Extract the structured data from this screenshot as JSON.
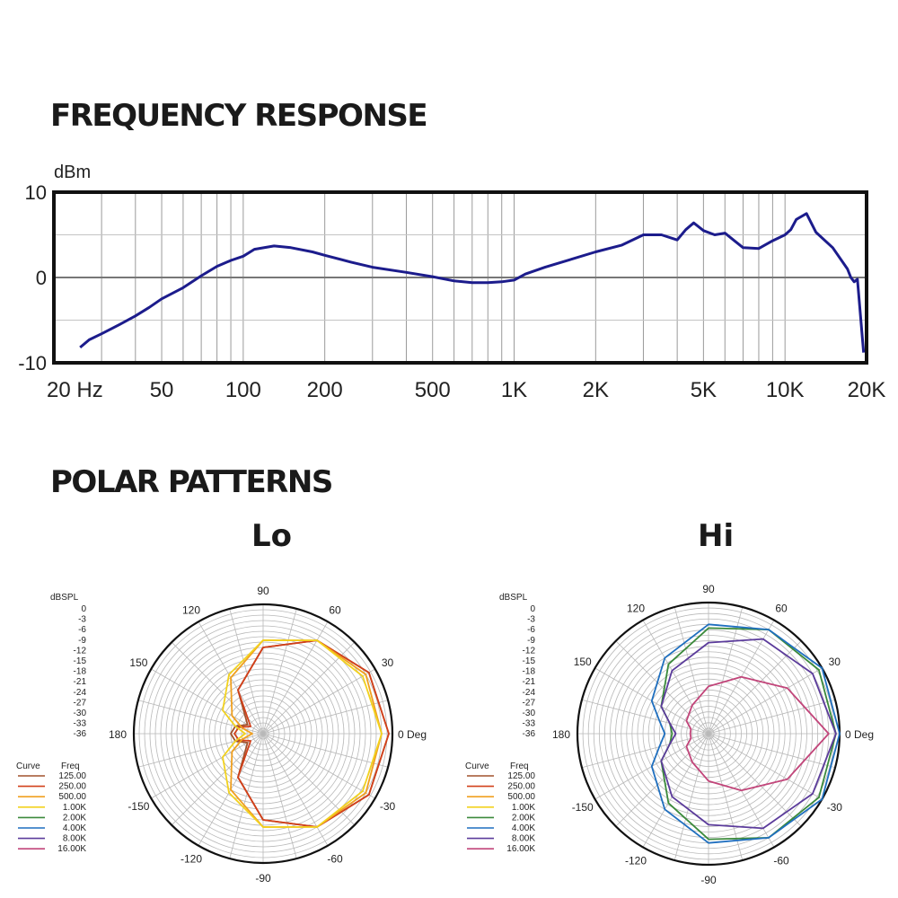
{
  "headings": {
    "frequency_response": "FREQUENCY RESPONSE",
    "polar_patterns": "POLAR PATTERNS",
    "lo": "Lo",
    "hi": "Hi"
  },
  "colors": {
    "response_line": "#1c1c8c",
    "frame": "#111111",
    "grid": "#9a9a9a"
  },
  "chart_data": [
    {
      "type": "line",
      "title": "FREQUENCY RESPONSE",
      "ylabel": "dBm",
      "xscale": "log",
      "xlim": [
        20,
        20000
      ],
      "ylim": [
        -10,
        10
      ],
      "xticks": [
        20,
        50,
        100,
        200,
        500,
        1000,
        2000,
        5000,
        10000,
        20000
      ],
      "xtick_labels": [
        "20 Hz",
        "50",
        "100",
        "200",
        "500",
        "1K",
        "2K",
        "5K",
        "10K",
        "20K"
      ],
      "yticks": [
        10,
        0,
        -10
      ],
      "ytick_labels": [
        "10",
        "0",
        "-10"
      ],
      "grid": true,
      "series": [
        {
          "x": [
            25,
            27,
            30,
            35,
            40,
            45,
            50,
            60,
            70,
            80,
            90,
            100,
            110,
            130,
            150,
            180,
            200,
            250,
            300,
            400,
            500,
            600,
            700,
            800,
            900,
            1000,
            1100,
            1300,
            1500,
            2000,
            2500,
            3000,
            3500,
            4000,
            4300,
            4600,
            5000,
            5500,
            6000,
            6500,
            7000,
            8000,
            9000,
            10000,
            10500,
            11000,
            12000,
            13000,
            15000,
            17000,
            17500,
            18000,
            18500,
            19500
          ],
          "y": [
            -8.2,
            -7.3,
            -6.6,
            -5.5,
            -4.5,
            -3.5,
            -2.5,
            -1.2,
            0.2,
            1.3,
            2.0,
            2.5,
            3.3,
            3.7,
            3.5,
            3.0,
            2.6,
            1.8,
            1.2,
            0.6,
            0.1,
            -0.4,
            -0.6,
            -0.6,
            -0.5,
            -0.3,
            0.4,
            1.2,
            1.8,
            3.0,
            3.8,
            5.0,
            5.0,
            4.4,
            5.6,
            6.4,
            5.5,
            5.0,
            5.2,
            4.3,
            3.5,
            3.4,
            4.3,
            5.0,
            5.6,
            6.8,
            7.5,
            5.3,
            3.5,
            1.0,
            0.0,
            -0.5,
            -0.2,
            -8.8
          ]
        }
      ]
    },
    {
      "type": "polar",
      "title": "Lo",
      "radial_label": "dBSPL",
      "radial_ticks": [
        "0",
        "-3",
        "-6",
        "-9",
        "-12",
        "-15",
        "-18",
        "-21",
        "-24",
        "-27",
        "-30",
        "-33",
        "-36"
      ],
      "angle_ticks": [
        "0 Deg",
        "30",
        "60",
        "90",
        "120",
        "150",
        "180",
        "-150",
        "-120",
        "-90",
        "-60",
        "-30"
      ],
      "legend_header": [
        "Curve",
        "Freq"
      ],
      "legend": [
        {
          "freq": "125.00",
          "color": "#a0522d"
        },
        {
          "freq": "250.00",
          "color": "#d2401a"
        },
        {
          "freq": "500.00",
          "color": "#f0a020"
        },
        {
          "freq": "1.00K",
          "color": "#f2d21e"
        },
        {
          "freq": "2.00K",
          "color": "#3b8a3b"
        },
        {
          "freq": "4.00K",
          "color": "#1f6fbf"
        },
        {
          "freq": "8.00K",
          "color": "#5b3b9b"
        },
        {
          "freq": "16.00K",
          "color": "#c2457a"
        }
      ],
      "series": [
        {
          "name": "125.00",
          "angles": [
            0,
            30,
            60,
            90,
            120,
            150,
            165,
            180
          ],
          "db": [
            -1,
            -2,
            -6,
            -12,
            -22,
            -31,
            -28,
            -27
          ]
        },
        {
          "name": "250.00",
          "angles": [
            0,
            30,
            60,
            90,
            120,
            150,
            165,
            180
          ],
          "db": [
            -1,
            -2,
            -6,
            -12,
            -22,
            -32,
            -29,
            -28
          ]
        },
        {
          "name": "500.00",
          "angles": [
            0,
            30,
            60,
            90,
            120,
            150,
            165,
            180
          ],
          "db": [
            -3,
            -3,
            -6,
            -10,
            -18,
            -26,
            -30,
            -33
          ]
        },
        {
          "name": "1.00K",
          "angles": [
            0,
            30,
            60,
            90,
            120,
            150,
            165,
            180
          ],
          "db": [
            -3,
            -4,
            -6,
            -10,
            -17,
            -23,
            -28,
            -31
          ]
        }
      ]
    },
    {
      "type": "polar",
      "title": "Hi",
      "radial_label": "dBSPL",
      "radial_ticks": [
        "0",
        "-3",
        "-6",
        "-9",
        "-12",
        "-15",
        "-18",
        "-21",
        "-24",
        "-27",
        "-30",
        "-33",
        "-36"
      ],
      "angle_ticks": [
        "0 Deg",
        "30",
        "60",
        "90",
        "120",
        "150",
        "180",
        "-150",
        "-120",
        "-90",
        "-60",
        "-30"
      ],
      "legend_header": [
        "Curve",
        "Freq"
      ],
      "legend": [
        {
          "freq": "125.00",
          "color": "#a0522d"
        },
        {
          "freq": "250.00",
          "color": "#d2401a"
        },
        {
          "freq": "500.00",
          "color": "#f0a020"
        },
        {
          "freq": "1.00K",
          "color": "#f2d21e"
        },
        {
          "freq": "2.00K",
          "color": "#3b8a3b"
        },
        {
          "freq": "4.00K",
          "color": "#1f6fbf"
        },
        {
          "freq": "8.00K",
          "color": "#5b3b9b"
        },
        {
          "freq": "16.00K",
          "color": "#c2457a"
        }
      ],
      "series": [
        {
          "name": "2.00K",
          "angles": [
            0,
            30,
            60,
            90,
            120,
            150,
            165,
            180
          ],
          "db": [
            -1,
            -1,
            -3,
            -7,
            -14,
            -21,
            -25,
            -26
          ]
        },
        {
          "name": "4.00K",
          "angles": [
            0,
            30,
            60,
            90,
            120,
            150,
            165,
            180
          ],
          "db": [
            0,
            0,
            -3,
            -6,
            -12,
            -18,
            -22,
            -24
          ]
        },
        {
          "name": "8.00K",
          "angles": [
            0,
            30,
            60,
            90,
            120,
            150,
            165,
            180
          ],
          "db": [
            -1,
            -3,
            -6,
            -11,
            -16,
            -21,
            -25,
            -27
          ]
        },
        {
          "name": "16.00K",
          "angles": [
            0,
            30,
            60,
            90,
            120,
            150,
            165,
            180
          ],
          "db": [
            -3,
            -11,
            -18,
            -23,
            -27,
            -29,
            -31,
            -31
          ]
        }
      ]
    }
  ]
}
